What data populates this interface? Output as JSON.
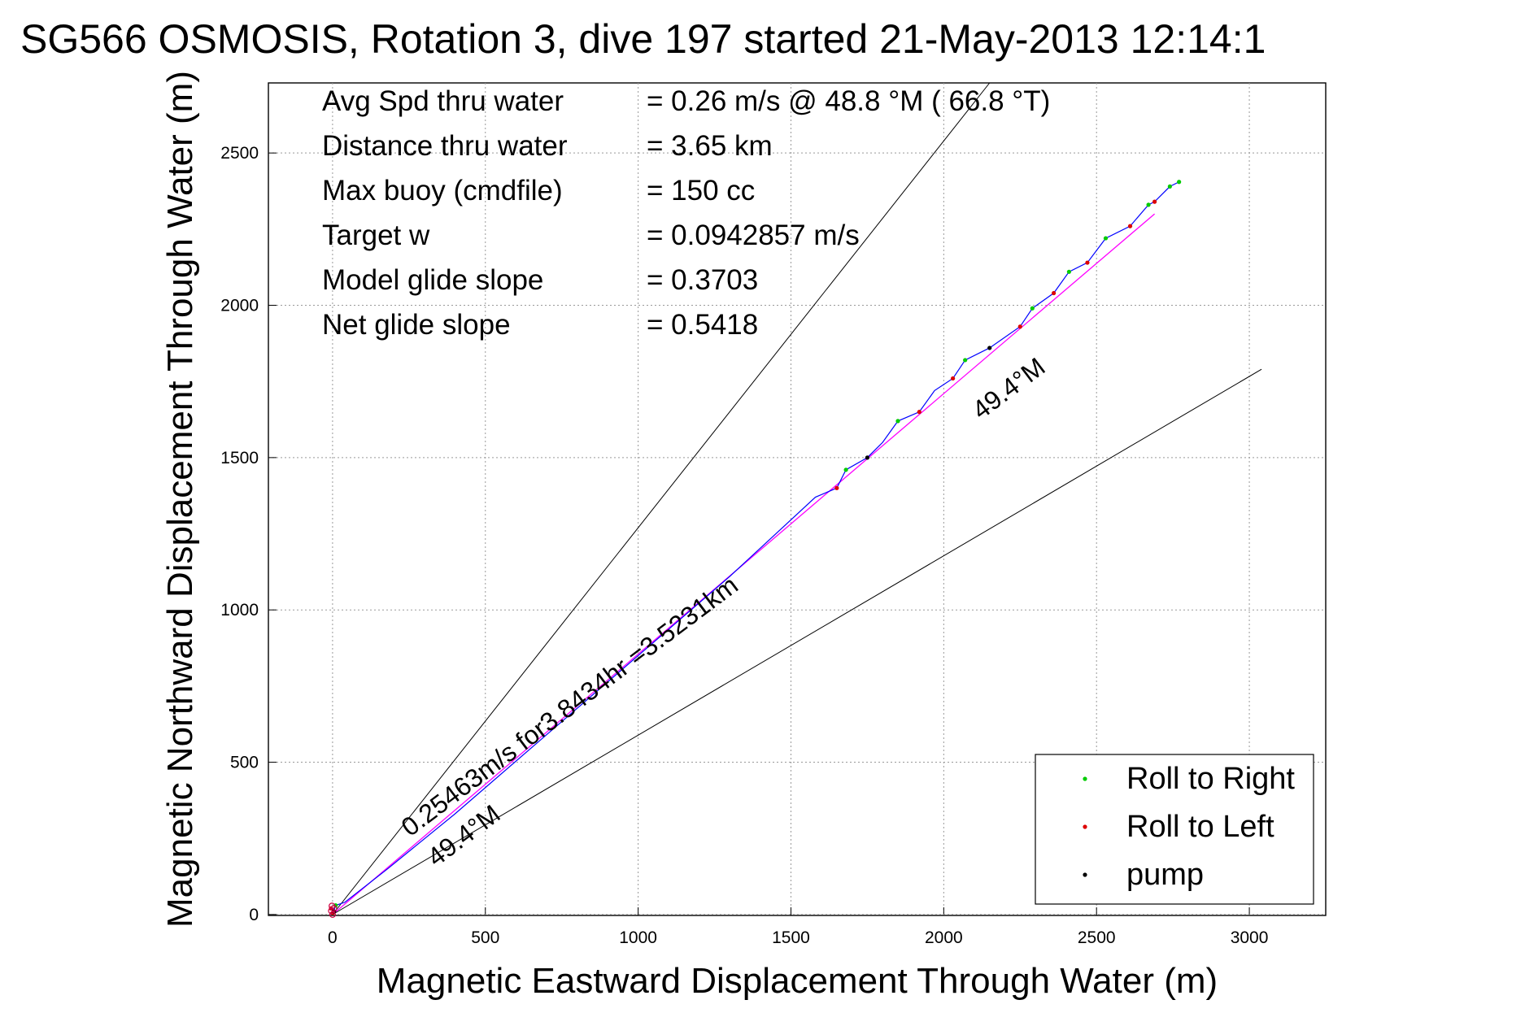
{
  "chart_data": {
    "type": "line",
    "title": "SG566 OSMOSIS, Rotation 3, dive 197 started 21-May-2013 12:14:1",
    "xlabel": "Magnetic Eastward Displacement Through Water (m)",
    "ylabel": "Magnetic Northward Displacement Through Water (m)",
    "xlim": [
      -210,
      3250
    ],
    "ylim": [
      -3,
      2730
    ],
    "xticks": [
      0,
      500,
      1000,
      1500,
      2000,
      2500,
      3000
    ],
    "yticks": [
      0,
      500,
      1000,
      1500,
      2000,
      2500
    ],
    "xtick_labels": [
      "0",
      "500",
      "1000",
      "1500",
      "2000",
      "2500",
      "3000"
    ],
    "ytick_labels": [
      "0",
      "500",
      "1000",
      "1500",
      "2000",
      "2500"
    ],
    "grid": true,
    "legend_position": "bottom-right",
    "info": [
      {
        "label": "Avg Spd thru water",
        "value": "=  0.26 m/s @  48.8 °M ( 66.8 °T)"
      },
      {
        "label": "Distance thru water",
        "value": "=  3.65 km"
      },
      {
        "label": "Max buoy (cmdfile)",
        "value": "= 150 cc"
      },
      {
        "label": "Target w",
        "value": "= 0.0942857 m/s"
      },
      {
        "label": "Model glide slope",
        "value": "= 0.3703"
      },
      {
        "label": "Net glide slope",
        "value": "= 0.5418"
      }
    ],
    "annotations": {
      "along_track": "0.25463m/s for3.8434hr =3.5231km",
      "heading_lower": "49.4°M",
      "heading_upper": "49.4°M"
    },
    "guide_lines": {
      "upper": {
        "x": [
          0,
          2150
        ],
        "y": [
          0,
          2730
        ]
      },
      "lower": {
        "x": [
          0,
          3040
        ],
        "y": [
          0,
          1790
        ]
      }
    },
    "series": [
      {
        "name": "Roll to Right",
        "color": "#00cc00",
        "points": [
          [
            10,
            30
          ],
          [
            1680,
            1460
          ],
          [
            1850,
            1620
          ],
          [
            2070,
            1820
          ],
          [
            2290,
            1990
          ],
          [
            2410,
            2110
          ],
          [
            2530,
            2220
          ],
          [
            2670,
            2330
          ],
          [
            2740,
            2390
          ],
          [
            2770,
            2405
          ]
        ]
      },
      {
        "name": "Roll to Left",
        "color": "#dd0000",
        "points": [
          [
            -5,
            20
          ],
          [
            0,
            5
          ],
          [
            1650,
            1400
          ],
          [
            1920,
            1650
          ],
          [
            2030,
            1760
          ],
          [
            2250,
            1930
          ],
          [
            2360,
            2040
          ],
          [
            2470,
            2140
          ],
          [
            2610,
            2260
          ],
          [
            2690,
            2340
          ]
        ]
      },
      {
        "name": "pump",
        "color": "#000000",
        "points": [
          [
            5,
            10
          ],
          [
            1750,
            1500
          ],
          [
            2150,
            1860
          ]
        ]
      }
    ],
    "track": {
      "color": "#0000ff",
      "points": [
        [
          0,
          0
        ],
        [
          10,
          30
        ],
        [
          40,
          40
        ],
        [
          180,
          150
        ],
        [
          400,
          330
        ],
        [
          700,
          590
        ],
        [
          1000,
          850
        ],
        [
          1300,
          1110
        ],
        [
          1580,
          1370
        ],
        [
          1650,
          1400
        ],
        [
          1680,
          1460
        ],
        [
          1750,
          1500
        ],
        [
          1800,
          1550
        ],
        [
          1850,
          1620
        ],
        [
          1920,
          1650
        ],
        [
          1970,
          1720
        ],
        [
          2030,
          1760
        ],
        [
          2070,
          1820
        ],
        [
          2150,
          1860
        ],
        [
          2250,
          1930
        ],
        [
          2290,
          1990
        ],
        [
          2360,
          2040
        ],
        [
          2410,
          2110
        ],
        [
          2470,
          2140
        ],
        [
          2530,
          2220
        ],
        [
          2610,
          2260
        ],
        [
          2670,
          2330
        ],
        [
          2690,
          2340
        ],
        [
          2740,
          2390
        ],
        [
          2770,
          2405
        ]
      ]
    },
    "fit_line": {
      "color": "#ff00ff",
      "x": [
        0,
        2690
      ],
      "y": [
        0,
        2300
      ]
    }
  }
}
